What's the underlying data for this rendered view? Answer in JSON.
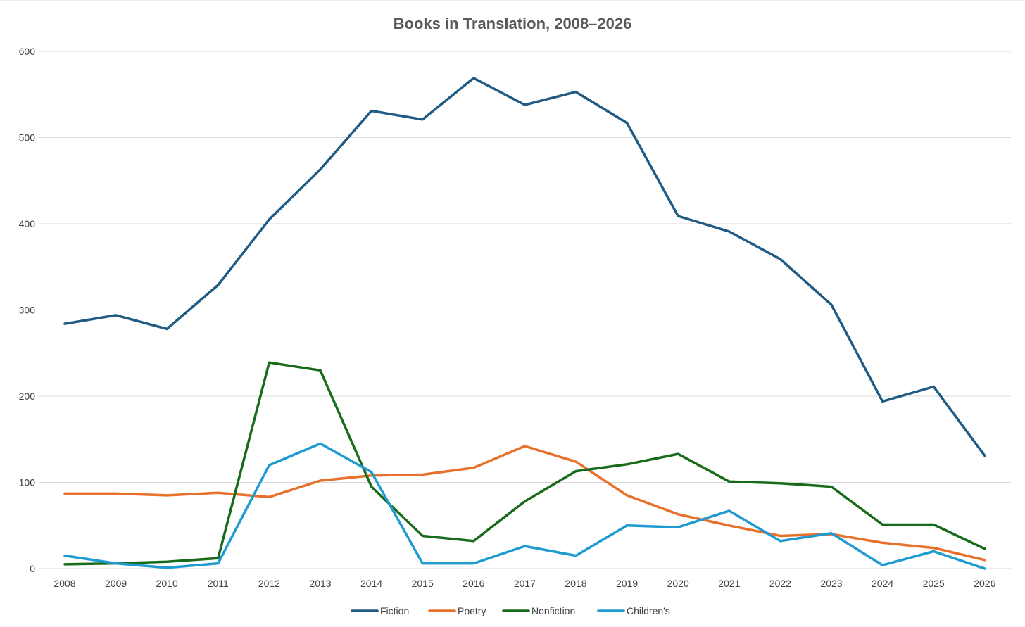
{
  "chart_data": {
    "type": "line",
    "title": "Books in Translation, 2008–2026",
    "xlabel": "",
    "ylabel": "",
    "ylim": [
      0,
      600
    ],
    "yticks": [
      0,
      100,
      200,
      300,
      400,
      500,
      600
    ],
    "grid": true,
    "legend_position": "bottom",
    "categories": [
      "2008",
      "2009",
      "2010",
      "2011",
      "2012",
      "2013",
      "2014",
      "2015",
      "2016",
      "2017",
      "2018",
      "2019",
      "2020",
      "2021",
      "2022",
      "2023",
      "2024",
      "2025",
      "2026"
    ],
    "series": [
      {
        "name": "Fiction",
        "color": "#1f5b85",
        "values": [
          284,
          294,
          278,
          329,
          405,
          463,
          531,
          521,
          569,
          538,
          553,
          517,
          409,
          391,
          359,
          306,
          194,
          211,
          131
        ]
      },
      {
        "name": "Poetry",
        "color": "#e8702a",
        "values": [
          87,
          87,
          85,
          88,
          83,
          102,
          108,
          109,
          117,
          142,
          124,
          85,
          63,
          50,
          38,
          40,
          30,
          24,
          10
        ]
      },
      {
        "name": "Nonfiction",
        "color": "#196b1c",
        "values": [
          5,
          6,
          8,
          12,
          239,
          230,
          95,
          38,
          32,
          78,
          113,
          121,
          133,
          101,
          99,
          95,
          51,
          51,
          23
        ]
      },
      {
        "name": "Children's",
        "color": "#1f9bd1",
        "values": [
          15,
          6,
          1,
          6,
          120,
          145,
          112,
          6,
          6,
          26,
          15,
          50,
          48,
          67,
          32,
          41,
          4,
          20,
          0
        ]
      }
    ]
  }
}
